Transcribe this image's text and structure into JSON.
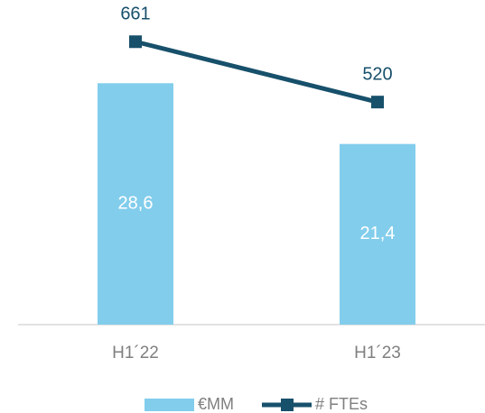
{
  "chart_data": {
    "type": "combo",
    "categories": [
      "H1´22",
      "H1´23"
    ],
    "series": [
      {
        "name": "€MM",
        "type": "bar",
        "color": "#82cdec",
        "values": [
          28.6,
          21.4
        ],
        "value_labels": [
          "28,6",
          "21,4"
        ]
      },
      {
        "name": "# FTEs",
        "type": "line",
        "axis": "y2",
        "color": "#17506b",
        "values": [
          661,
          520
        ]
      }
    ],
    "ylim": [
      0,
      36
    ],
    "y2lim": [
      0,
      710
    ],
    "legend": "bottom"
  }
}
